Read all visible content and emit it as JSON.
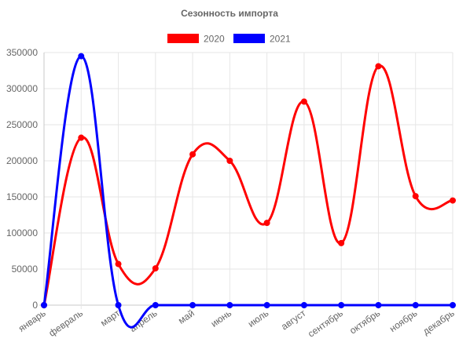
{
  "chart_data": {
    "type": "line",
    "title": "Сезонность импорта",
    "categories": [
      "январь",
      "февраль",
      "март",
      "апрель",
      "май",
      "июнь",
      "июль",
      "август",
      "сентябрь",
      "октябрь",
      "ноябрь",
      "декабрь"
    ],
    "series": [
      {
        "name": "2020",
        "color": "#ff0000",
        "values": [
          0,
          232000,
          57000,
          51000,
          209000,
          200000,
          114000,
          282000,
          86000,
          331000,
          151000,
          145000
        ]
      },
      {
        "name": "2021",
        "color": "#0000ff",
        "values": [
          0,
          345000,
          0,
          0,
          0,
          0,
          0,
          0,
          0,
          0,
          0,
          0
        ]
      }
    ],
    "yticks": [
      "0",
      "50000",
      "100000",
      "150000",
      "200000",
      "250000",
      "300000",
      "350000"
    ],
    "ylim": [
      0,
      350000
    ],
    "grid": true,
    "legend_position": "top"
  }
}
